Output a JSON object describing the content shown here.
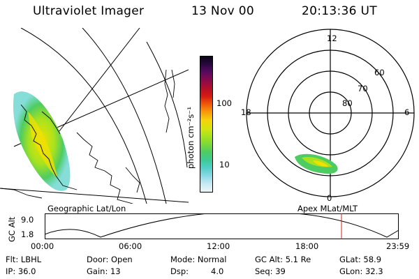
{
  "header": {
    "instrument": "Ultraviolet Imager",
    "date": "13 Nov 00",
    "time": "20:13:36 UT"
  },
  "geo_panel": {
    "label": "Geographic Lat/Lon"
  },
  "mag_panel": {
    "label": "Apex MLat/MLT",
    "mlt_labels": [
      "12",
      "18",
      "6",
      "0"
    ],
    "lat_labels": [
      "60",
      "70",
      "80"
    ]
  },
  "colorbar": {
    "unit": "photon cm⁻²s⁻¹",
    "tick_top": "100",
    "tick_bottom": "10",
    "colors": [
      "#0b0416",
      "#2a0842",
      "#5a0a60",
      "#8a0a4a",
      "#b30e2a",
      "#d81a12",
      "#ee5a0a",
      "#f89a0a",
      "#f7d20c",
      "#d7e40e",
      "#a8e21e",
      "#7ed838",
      "#4ecc62",
      "#3ec996",
      "#52cfc8",
      "#8ad9e6",
      "#c6e9f2",
      "#eef6f8"
    ]
  },
  "altitude_plot": {
    "ylabel": "GC Alt",
    "y_ticks": [
      "9.0",
      "1.8"
    ],
    "x_ticks": [
      "00:00",
      "06:00",
      "12:00",
      "18:00",
      "23:59"
    ],
    "current_time_marker": "20:13",
    "marker_color": "#d02020"
  },
  "status": {
    "flt": "Flt: LBHL",
    "ip": "IP: 36.0",
    "door": "Door: Open",
    "gain": "Gain: 13",
    "mode": "Mode: Normal",
    "dsp_label": "Dsp:",
    "dsp_value": "4.0",
    "gc_alt": "GC Alt: 5.1 Re",
    "seq": "Seq: 39",
    "glat": "GLat:  58.9",
    "glon": "GLon:  32.3"
  }
}
